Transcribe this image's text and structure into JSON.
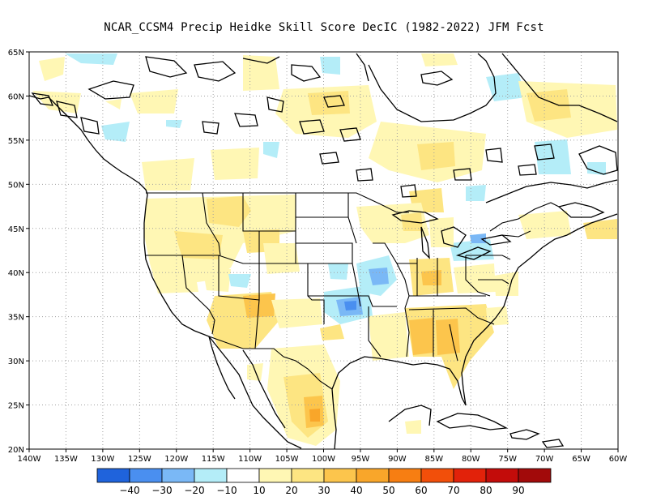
{
  "title": "NCAR_CCSM4 Precip Heidke Skill Score DecIC (1982-2022) JFM Fcst",
  "lat_ticks": [
    "65N",
    "60N",
    "55N",
    "50N",
    "45N",
    "40N",
    "35N",
    "30N",
    "25N",
    "20N"
  ],
  "lon_ticks": [
    "140W",
    "135W",
    "130W",
    "125W",
    "120W",
    "115W",
    "110W",
    "105W",
    "100W",
    "95W",
    "90W",
    "85W",
    "80W",
    "75W",
    "70W",
    "65W",
    "60W"
  ],
  "colorbar": {
    "colors": [
      "#1f63dc",
      "#4a8ff0",
      "#7ab8f6",
      "#b4edf8",
      "#ffffff",
      "#fff7b4",
      "#fde582",
      "#fcc54c",
      "#f9a62a",
      "#f77e12",
      "#f24f0a",
      "#e2220a",
      "#c30c0a",
      "#a20a0a"
    ],
    "labels": [
      "−40",
      "−30",
      "−20",
      "−10",
      "10",
      "20",
      "30",
      "40",
      "50",
      "60",
      "70",
      "80",
      "90"
    ]
  },
  "colors": {
    "light_yellow": "#fff7b4",
    "yellow": "#fde582",
    "orange": "#fcc54c",
    "light_blue": "#b4edf8",
    "blue": "#7ab8f6",
    "mid_blue": "#4a8ff0"
  }
}
